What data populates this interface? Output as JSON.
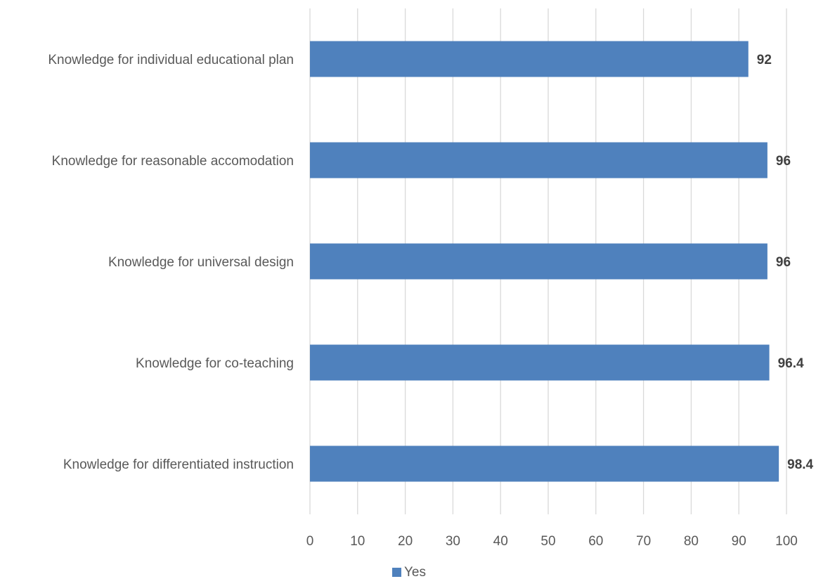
{
  "chart_data": {
    "type": "bar",
    "orientation": "horizontal",
    "categories": [
      "Knowledge for individual educational plan",
      "Knowledge for reasonable accomodation",
      "Knowledge for universal design",
      "Knowledge for co-teaching",
      "Knowledge for differentiated instruction"
    ],
    "series": [
      {
        "name": "Yes",
        "values": [
          92,
          96,
          96,
          96.4,
          98.4
        ],
        "color": "#4f81bd"
      }
    ],
    "data_labels": [
      "92",
      "96",
      "96",
      "96.4",
      "98.4"
    ],
    "x_ticks": [
      "0",
      "10",
      "20",
      "30",
      "40",
      "50",
      "60",
      "70",
      "80",
      "90",
      "100"
    ],
    "xlim": [
      0,
      100
    ],
    "grid": true,
    "legend": "bottom-center",
    "title": "",
    "xlabel": "",
    "ylabel": ""
  }
}
